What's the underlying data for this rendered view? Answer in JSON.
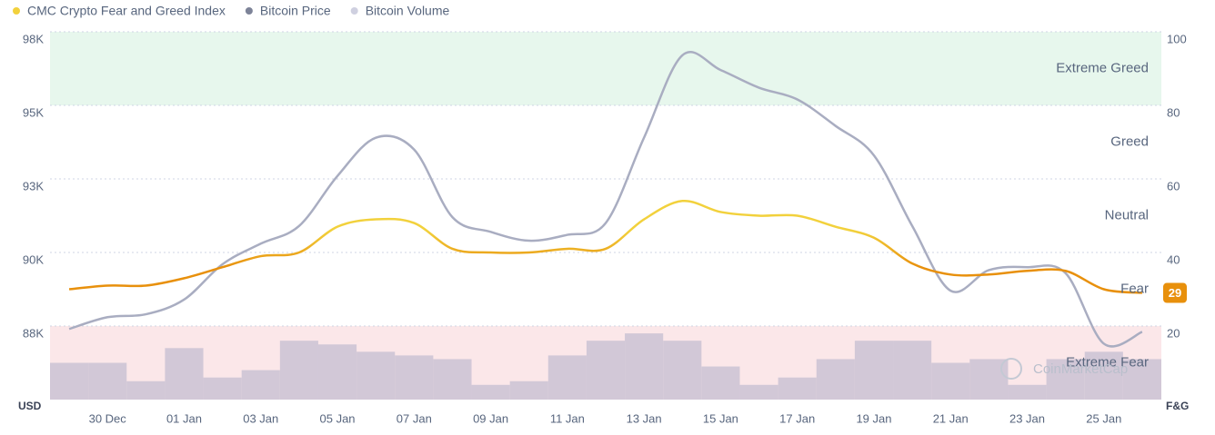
{
  "chart_data": {
    "type": "line",
    "legend_position": "top-left",
    "categories": [
      null,
      "30 Dec",
      null,
      "01 Jan",
      null,
      "03 Jan",
      null,
      "05 Jan",
      null,
      "07 Jan",
      null,
      "09 Jan",
      null,
      "11 Jan",
      null,
      "13 Jan",
      null,
      "15 Jan",
      null,
      "17 Jan",
      null,
      "19 Jan",
      null,
      "21 Jan",
      null,
      "23 Jan",
      null,
      "25 Jan",
      null
    ],
    "series": [
      {
        "name": "CMC Crypto Fear and Greed Index",
        "type": "line",
        "axis": "y2",
        "color": "#f2d13c",
        "color_low": "#e8900c",
        "values": [
          30,
          31,
          31,
          33,
          36,
          39,
          40,
          47,
          49,
          48,
          41,
          40,
          40,
          41,
          41,
          49,
          54,
          51,
          50,
          50,
          47,
          44,
          37,
          34,
          34,
          35,
          35,
          30,
          29
        ]
      },
      {
        "name": "Bitcoin Price",
        "type": "line",
        "color": "#a9adc1",
        "legend_color": "#7d8398",
        "values": [
          87400,
          87800,
          87900,
          88400,
          89600,
          90300,
          90900,
          92600,
          93900,
          93500,
          91200,
          90700,
          90400,
          90600,
          91000,
          93900,
          96700,
          96200,
          95600,
          95200,
          94300,
          93300,
          90900,
          88700,
          89400,
          89500,
          89300,
          86900,
          87300
        ]
      },
      {
        "name": "Bitcoin Volume",
        "type": "bar",
        "axis": "y2",
        "color": "#cdc4d5",
        "legend_color": "#cfd0e0",
        "values": [
          10,
          10,
          5,
          14,
          6,
          8,
          16,
          15,
          13,
          12,
          11,
          4,
          5,
          12,
          16,
          18,
          16,
          9,
          4,
          6,
          11,
          16,
          16,
          10,
          11,
          4,
          11,
          13,
          11
        ]
      }
    ],
    "ylabel": "USD",
    "y2label": "F&G",
    "ylim": [
      85000,
      97500
    ],
    "yticks": [
      {
        "value": 87500,
        "label": "88K"
      },
      {
        "value": 90000,
        "label": "90K"
      },
      {
        "value": 92500,
        "label": "93K"
      },
      {
        "value": 95000,
        "label": "95K"
      },
      {
        "value": 97500,
        "label": "98K"
      }
    ],
    "y2lim": [
      0,
      100
    ],
    "y2ticks": [
      20,
      40,
      60,
      80,
      100
    ],
    "grid": true,
    "zones": [
      {
        "label": "Extreme Greed",
        "from": 80,
        "to": 100,
        "color": "#e7f7ed"
      },
      {
        "label": "Greed",
        "from": 60,
        "to": 80
      },
      {
        "label": "Neutral",
        "from": 40,
        "to": 60
      },
      {
        "label": "Fear",
        "from": 20,
        "to": 40
      },
      {
        "label": "Extreme Fear",
        "from": 0,
        "to": 20,
        "color": "#fbe7e9"
      }
    ],
    "watermark": "CoinMarketCap"
  }
}
